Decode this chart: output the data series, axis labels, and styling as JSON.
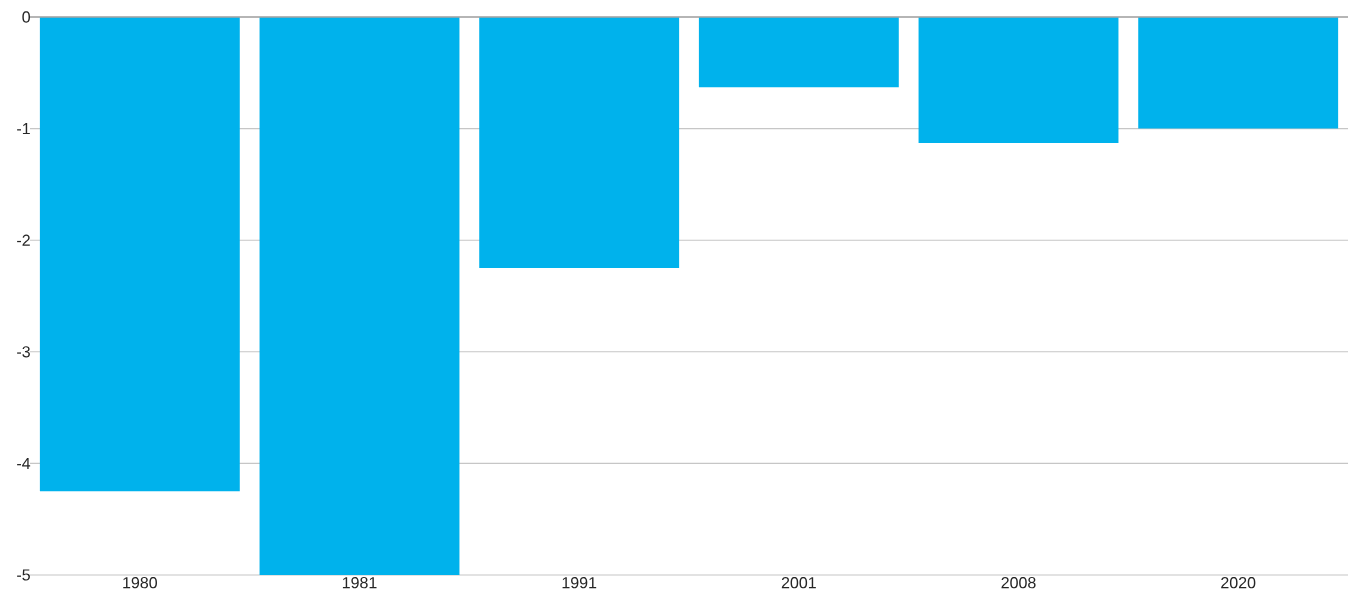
{
  "chart_data": {
    "type": "bar",
    "categories": [
      "1980",
      "1981",
      "1991",
      "2001",
      "2008",
      "2020"
    ],
    "values": [
      -4.25,
      -5.0,
      -2.25,
      -0.63,
      -1.13,
      -1.0
    ],
    "color": "#00b2ec",
    "ylim": [
      -5,
      0
    ],
    "yticks": [
      -5,
      -4,
      -3,
      -2,
      -1,
      0
    ],
    "grid": "y"
  }
}
